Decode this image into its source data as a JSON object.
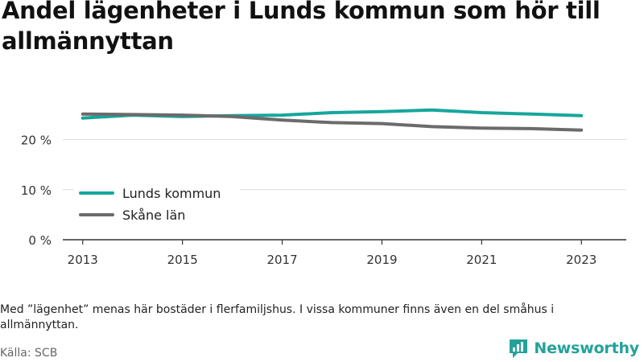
{
  "title": "Andel lägenheter i Lunds kommun som hör till allmännyttan",
  "note": "Med ”lägenhet” menas här bostäder i flerfamiljshus. I vissa kommuner finns även en del småhus i allmännyttan.",
  "source": "Källa: SCB",
  "brand": {
    "name": "Newsworthy",
    "icon": "newsworthy-logo-icon",
    "color": "#23a29a"
  },
  "chart_data": {
    "type": "line",
    "x": [
      2013,
      2014,
      2015,
      2016,
      2017,
      2018,
      2019,
      2020,
      2021,
      2022,
      2023
    ],
    "x_ticks": [
      2013,
      2015,
      2017,
      2019,
      2021,
      2023
    ],
    "x_tick_labels": [
      "2013",
      "2015",
      "2017",
      "2019",
      "2021",
      "2023"
    ],
    "y_ticks": [
      0,
      10,
      20
    ],
    "y_tick_labels": [
      "0 %",
      "10 %",
      "20 %"
    ],
    "ylim": [
      0,
      27
    ],
    "grid": true,
    "legend_position": "left",
    "series": [
      {
        "name": "Lunds kommun",
        "color": "#17a69d",
        "values": [
          24.3,
          24.9,
          24.6,
          24.8,
          24.9,
          25.4,
          25.6,
          25.9,
          25.4,
          25.1,
          24.8
        ]
      },
      {
        "name": "Skåne län",
        "color": "#6b6b6b",
        "values": [
          25.1,
          25.0,
          24.9,
          24.6,
          23.9,
          23.4,
          23.2,
          22.6,
          22.3,
          22.2,
          21.9
        ]
      }
    ]
  }
}
